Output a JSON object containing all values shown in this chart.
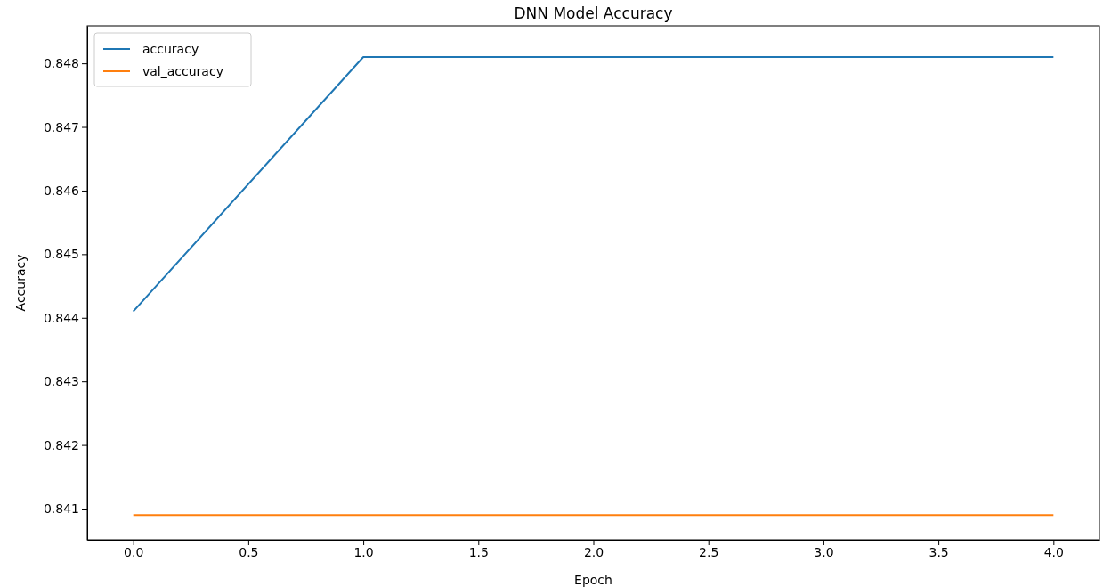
{
  "chart_data": {
    "type": "line",
    "title": "DNN Model Accuracy",
    "xlabel": "Epoch",
    "ylabel": "Accuracy",
    "x": [
      0,
      1,
      2,
      3,
      4
    ],
    "series": [
      {
        "name": "accuracy",
        "color": "#1f77b4",
        "values": [
          0.8441,
          0.8481,
          0.8481,
          0.8481,
          0.8481
        ]
      },
      {
        "name": "val_accuracy",
        "color": "#ff7f0e",
        "values": [
          0.8409,
          0.8409,
          0.8409,
          0.8409,
          0.8409
        ]
      }
    ],
    "xlim": [
      -0.2,
      4.2
    ],
    "xticks": [
      {
        "value": 0,
        "label": "0.0"
      },
      {
        "value": 0.5,
        "label": "0.5"
      },
      {
        "value": 1,
        "label": "1.0"
      },
      {
        "value": 1.5,
        "label": "1.5"
      },
      {
        "value": 2,
        "label": "2.0"
      },
      {
        "value": 2.5,
        "label": "2.5"
      },
      {
        "value": 3,
        "label": "3.0"
      },
      {
        "value": 3.5,
        "label": "3.5"
      },
      {
        "value": 4,
        "label": "4.0"
      }
    ],
    "ylim": [
      0.84051,
      0.84859
    ],
    "yticks": [
      0.841,
      0.842,
      0.843,
      0.844,
      0.845,
      0.846,
      0.847,
      0.848
    ],
    "legend": "top left",
    "line_style": "solid",
    "marker": "none"
  }
}
